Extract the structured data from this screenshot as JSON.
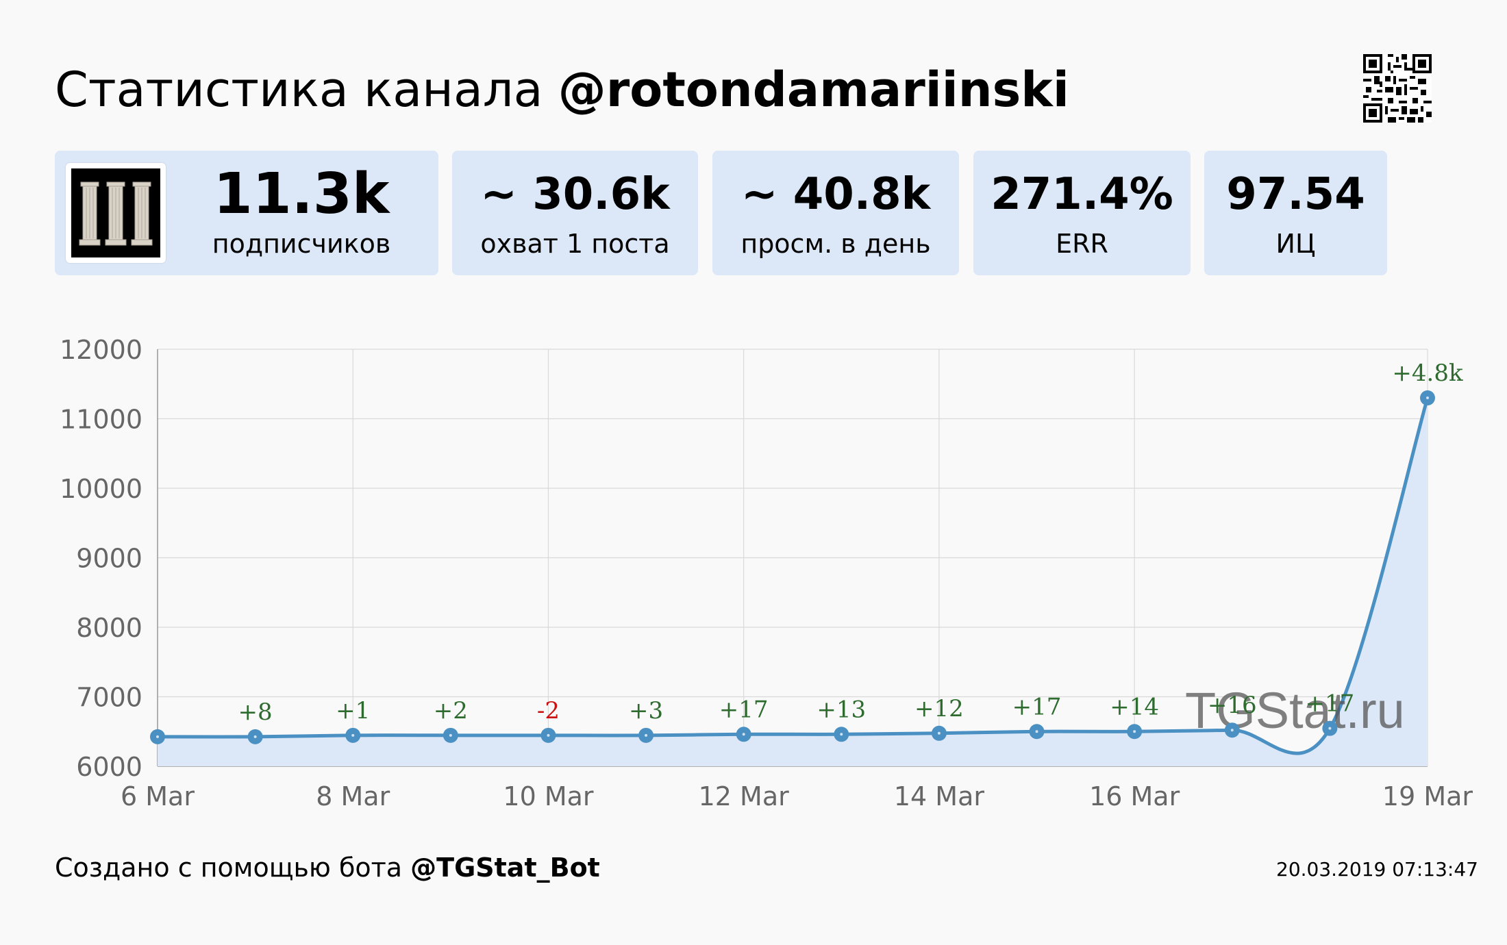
{
  "header": {
    "title_prefix": "Статистика канала ",
    "channel": "@rotondamariinski"
  },
  "icons": {
    "qr": "qr-code-icon",
    "avatar": "columns-avatar"
  },
  "stats": [
    {
      "value": "11.3k",
      "label": "подписчиков"
    },
    {
      "value": "~ 30.6k",
      "label": "охват 1 поста"
    },
    {
      "value": "~ 40.8k",
      "label": "просм. в день"
    },
    {
      "value": "271.4%",
      "label": "ERR"
    },
    {
      "value": "97.54",
      "label": "ИЦ"
    }
  ],
  "chart_data": {
    "type": "area",
    "x": [
      "2019-03-06",
      "2019-03-07",
      "2019-03-08",
      "2019-03-09",
      "2019-03-10",
      "2019-03-11",
      "2019-03-12",
      "2019-03-13",
      "2019-03-14",
      "2019-03-15",
      "2019-03-16",
      "2019-03-17",
      "2019-03-18",
      "2019-03-19"
    ],
    "values": [
      6425,
      6425,
      6445,
      6445,
      6445,
      6445,
      6460,
      6460,
      6475,
      6500,
      6500,
      6520,
      6545,
      11300
    ],
    "point_labels": [
      "",
      "+8",
      "+1",
      "+2",
      "-2",
      "+3",
      "+17",
      "+13",
      "+12",
      "+17",
      "+14",
      "+16",
      "+17",
      "+4.8k"
    ],
    "xtick_labels": [
      {
        "x": "2019-03-06",
        "label": "6 Mar"
      },
      {
        "x": "2019-03-08",
        "label": "8 Mar"
      },
      {
        "x": "2019-03-10",
        "label": "10 Mar"
      },
      {
        "x": "2019-03-12",
        "label": "12 Mar"
      },
      {
        "x": "2019-03-14",
        "label": "14 Mar"
      },
      {
        "x": "2019-03-16",
        "label": "16 Mar"
      },
      {
        "x": "2019-03-19",
        "label": "19 Mar"
      }
    ],
    "yticks": [
      6000,
      7000,
      8000,
      9000,
      10000,
      11000,
      12000
    ],
    "ylim": [
      6000,
      12000
    ],
    "grid": true,
    "watermark": "TGStat.ru",
    "colors": {
      "line": "#4a90c2",
      "fill": "#dce8f8",
      "positive": "#2e6b2e",
      "negative": "#cc1111",
      "grid": "#d9d9d9",
      "axis_text": "#666666"
    }
  },
  "footer": {
    "text": "Создано с помощью бота ",
    "bot": "@TGStat_Bot",
    "timestamp": "20.03.2019 07:13:47"
  }
}
